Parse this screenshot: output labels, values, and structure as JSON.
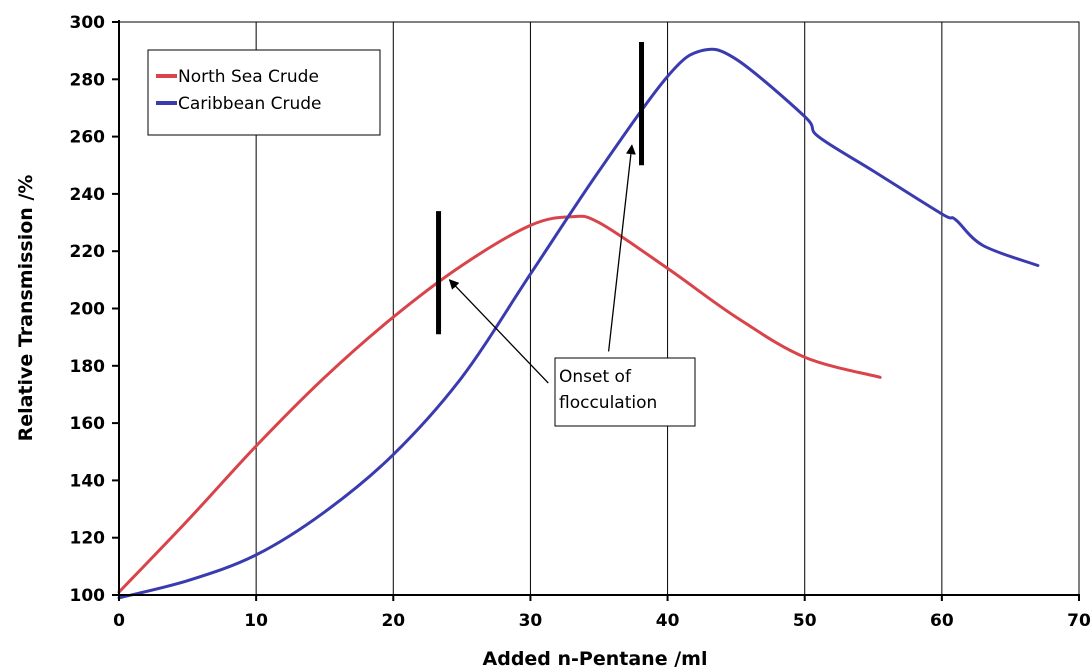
{
  "chart_data": {
    "type": "line",
    "title": "",
    "xlabel": "Added n-Pentane /ml",
    "ylabel": "Relative Transmission /%",
    "xlim": [
      0,
      70
    ],
    "ylim": [
      100,
      300
    ],
    "xticks": [
      0,
      10,
      20,
      30,
      40,
      50,
      60,
      70
    ],
    "yticks": [
      100,
      120,
      140,
      160,
      180,
      200,
      220,
      240,
      260,
      280,
      300
    ],
    "xtick_labels": [
      "0",
      "10",
      "20",
      "30",
      "40",
      "50",
      "60",
      "70"
    ],
    "ytick_labels": [
      "100",
      "120",
      "140",
      "160",
      "180",
      "200",
      "220",
      "240",
      "260",
      "280",
      "300"
    ],
    "grid": "vertical",
    "legend_position": "top-left",
    "series": [
      {
        "name": "North Sea Crude",
        "color": "#d9434a",
        "x": [
          0,
          5,
          10,
          15,
          20,
          25,
          30,
          33,
          35,
          40,
          45,
          50,
          55.5
        ],
        "y": [
          101,
          126,
          152,
          176,
          197,
          215,
          229,
          232,
          230,
          214,
          197,
          183,
          176
        ]
      },
      {
        "name": "Caribbean Crude",
        "color": "#3b3bb0",
        "x": [
          0,
          5,
          10,
          15,
          20,
          25,
          30,
          35,
          40,
          42.5,
          45,
          50,
          51,
          55,
          60,
          61,
          63,
          67
        ],
        "y": [
          99,
          105,
          114,
          129,
          149,
          176,
          212,
          248,
          281,
          290,
          287,
          267,
          260,
          248,
          233,
          231,
          222,
          215
        ]
      }
    ],
    "annotations": [
      {
        "text_lines": [
          "Onset of",
          "flocculation"
        ],
        "markers": [
          {
            "x": 23.3,
            "y_bottom": 191,
            "y_top": 234
          },
          {
            "x": 38.1,
            "y_bottom": 250,
            "y_top": 293
          }
        ],
        "arrows": [
          {
            "from": [
              31.3,
              174
            ],
            "to": [
              24.1,
              210
            ]
          },
          {
            "from": [
              35.7,
              185
            ],
            "to": [
              37.4,
              257
            ]
          }
        ]
      }
    ]
  }
}
